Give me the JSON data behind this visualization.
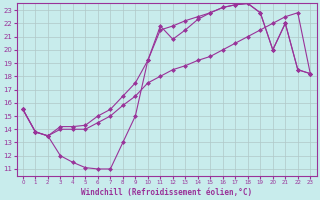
{
  "xlabel": "Windchill (Refroidissement éolien,°C)",
  "bg_color": "#c8ecec",
  "line_color": "#993399",
  "grid_color": "#b0c8c8",
  "xlim": [
    -0.5,
    23.5
  ],
  "ylim": [
    10.5,
    23.5
  ],
  "xticks": [
    0,
    1,
    2,
    3,
    4,
    5,
    6,
    7,
    8,
    9,
    10,
    11,
    12,
    13,
    14,
    15,
    16,
    17,
    18,
    19,
    20,
    21,
    22,
    23
  ],
  "yticks": [
    11,
    12,
    13,
    14,
    15,
    16,
    17,
    18,
    19,
    20,
    21,
    22,
    23
  ],
  "curve1_x": [
    0,
    1,
    2,
    3,
    4,
    5,
    6,
    7,
    8,
    9,
    10,
    11,
    12,
    13,
    14,
    15,
    16,
    17,
    18,
    19,
    20,
    21,
    22,
    23
  ],
  "curve1_y": [
    15.5,
    13.8,
    13.5,
    14.0,
    14.0,
    14.0,
    14.5,
    15.0,
    15.8,
    16.5,
    17.5,
    18.0,
    18.5,
    18.8,
    19.2,
    19.5,
    20.0,
    20.5,
    21.0,
    21.5,
    22.0,
    22.5,
    22.8,
    18.2
  ],
  "curve2_x": [
    0,
    1,
    2,
    3,
    4,
    5,
    6,
    7,
    8,
    9,
    10,
    11,
    12,
    13,
    14,
    15,
    16,
    17,
    18,
    19,
    20,
    21,
    22,
    23
  ],
  "curve2_y": [
    15.5,
    13.8,
    13.5,
    14.2,
    14.2,
    14.3,
    15.0,
    15.5,
    16.5,
    17.5,
    19.2,
    21.5,
    21.8,
    22.2,
    22.5,
    22.8,
    23.2,
    23.4,
    23.5,
    22.8,
    20.0,
    22.0,
    18.5,
    18.2
  ],
  "curve3_x": [
    0,
    1,
    2,
    3,
    4,
    5,
    6,
    7,
    8,
    9,
    10,
    11,
    12,
    13,
    14,
    15,
    16,
    17,
    18,
    19,
    20,
    21,
    22,
    23
  ],
  "curve3_y": [
    15.5,
    13.8,
    13.5,
    12.0,
    11.5,
    11.1,
    11.0,
    11.0,
    13.0,
    15.0,
    19.2,
    21.8,
    20.8,
    21.5,
    22.3,
    22.8,
    23.2,
    23.4,
    23.5,
    22.8,
    20.0,
    22.0,
    18.5,
    18.2
  ]
}
